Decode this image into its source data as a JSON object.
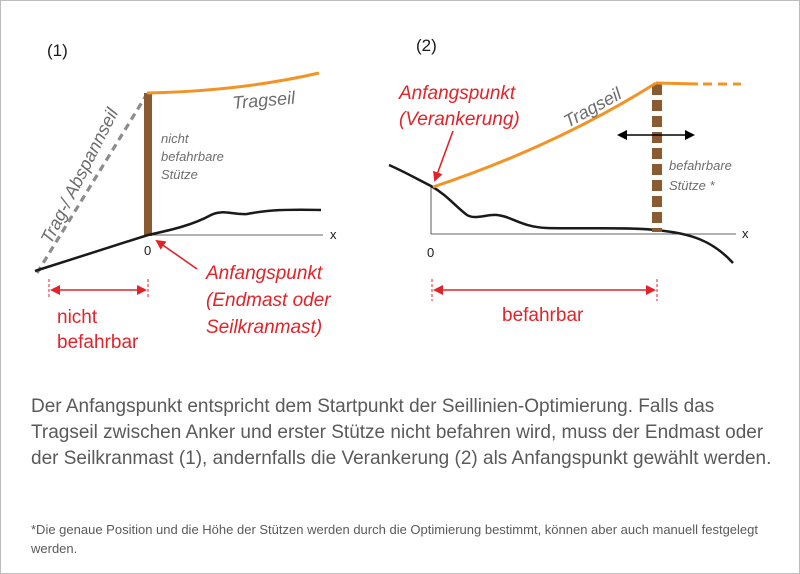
{
  "colors": {
    "tragseil": "#f39325",
    "stuetze_brown": "#8a5a32",
    "red_label": "#e2232a",
    "gray_text": "#6d6d6d",
    "ground": "#1a1a1a"
  },
  "panel1": {
    "number": "(1)",
    "anchor_rope_line1": "Trag-/ Abspannseil",
    "tragseil": "Tragseil",
    "support_line1": "nicht",
    "support_line2": "befahrbare",
    "support_line3": "Stütze",
    "axis_x": "x",
    "axis_zero": "0",
    "start_line1": "Anfangspunkt",
    "start_line2": "(Endmast oder",
    "start_line3": "Seilkranmast)",
    "range_line1": "nicht",
    "range_line2": "befahrbar"
  },
  "panel2": {
    "number": "(2)",
    "start_line1": "Anfangspunkt",
    "start_line2": "(Verankerung)",
    "tragseil": "Tragseil",
    "support_line1": "befahrbare",
    "support_line2": "Stütze *",
    "axis_x": "x",
    "axis_zero": "0",
    "range_label": "befahrbar"
  },
  "description": "Der Anfangspunkt entspricht dem Startpunkt der Seillinien-Optimierung. Falls das Tragseil zwischen Anker und erster Stütze nicht befahren wird, muss der Endmast oder der Seilkranmast (1), andernfalls die Verankerung (2) als Anfangspunkt gewählt werden.",
  "footnote": "*Die genaue Position und die Höhe der Stützen werden durch die Optimierung bestimmt, können aber auch manuell festgelegt werden."
}
